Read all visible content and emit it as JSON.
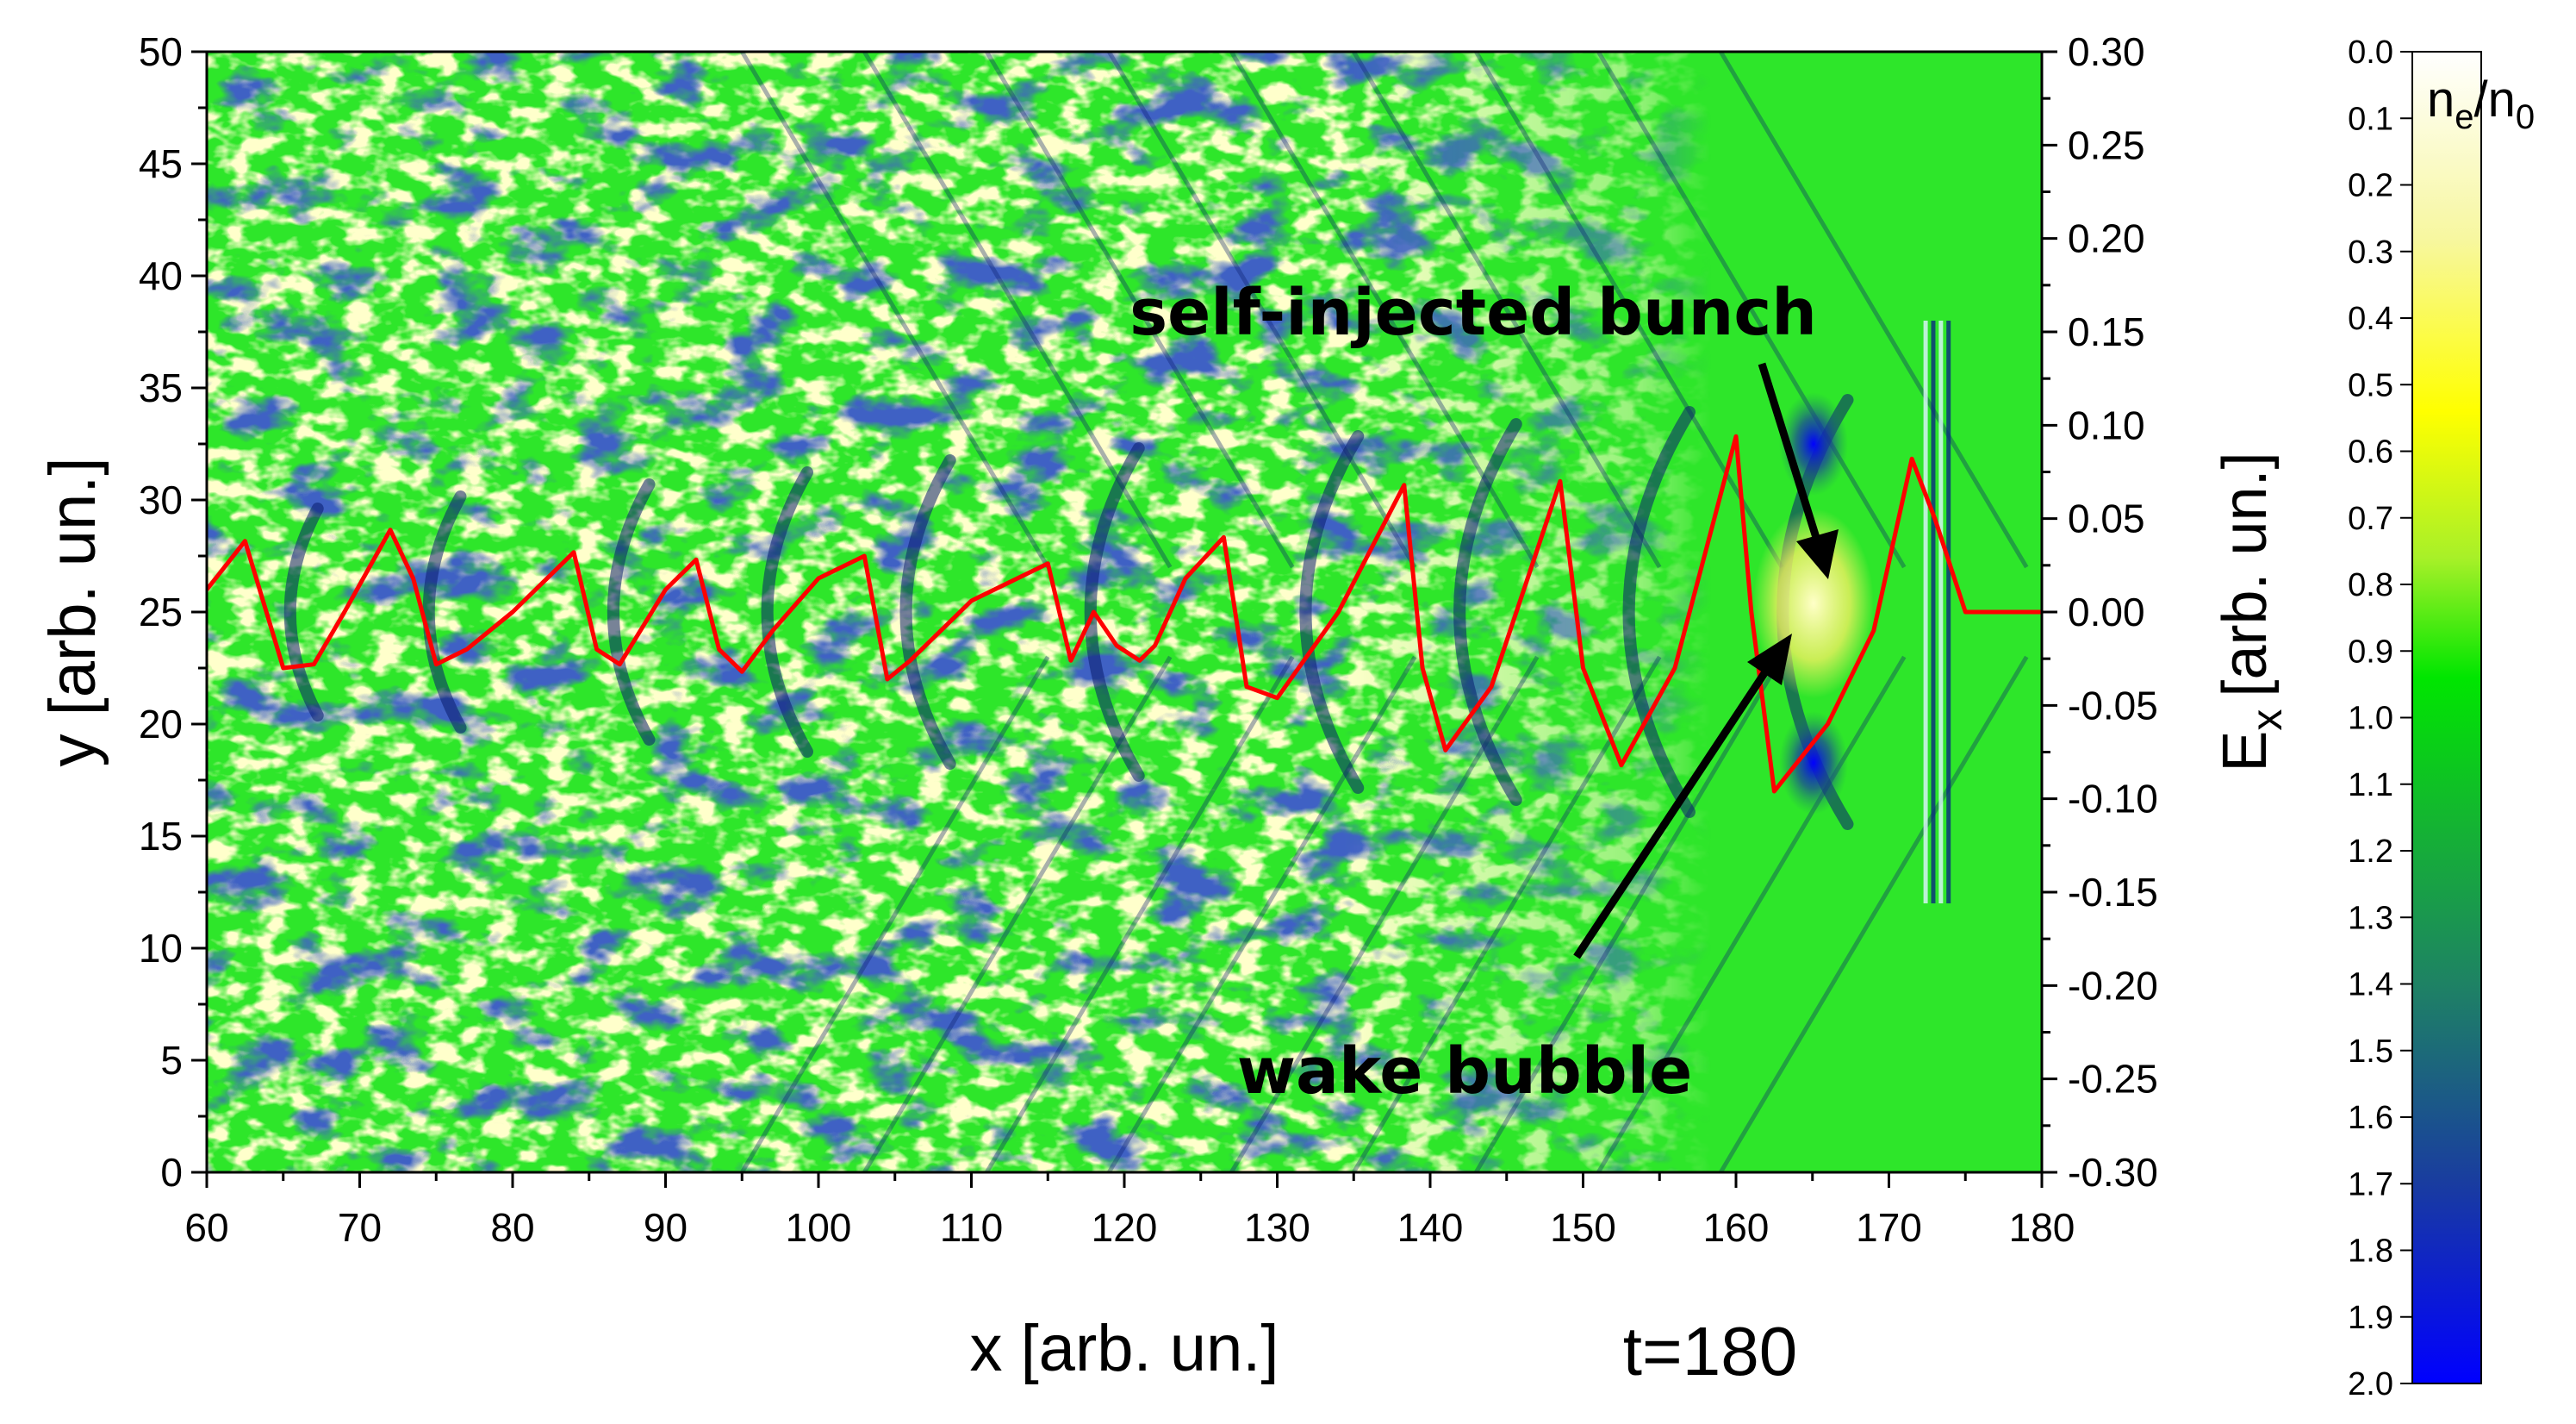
{
  "chart_data": {
    "type": "heatmap",
    "xlabel": "x [arb. un.]",
    "ylabel": "y [arb. un.]",
    "y2label": "E",
    "y2label_sub": "x",
    "y2label_unit": "[arb. un.]",
    "time_label": "t=180",
    "xlim": [
      60,
      180
    ],
    "ylim": [
      0,
      50
    ],
    "y2lim": [
      -0.3,
      0.3
    ],
    "xticks": [
      "60",
      "70",
      "80",
      "90",
      "100",
      "110",
      "120",
      "130",
      "140",
      "150",
      "160",
      "170",
      "180"
    ],
    "yticks": [
      "0",
      "5",
      "10",
      "15",
      "20",
      "25",
      "30",
      "35",
      "40",
      "45",
      "50"
    ],
    "y2ticks": [
      "0.30",
      "0.25",
      "0.20",
      "0.15",
      "0.10",
      "0.05",
      "0.00",
      "-0.05",
      "-0.10",
      "-0.15",
      "-0.20",
      "-0.25",
      "-0.30"
    ],
    "colorbar": {
      "label_main": "n",
      "label_sub1": "e",
      "label_sep": "/n",
      "label_sub2": "0",
      "range": [
        0.0,
        2.0
      ],
      "ticks": [
        "0.0",
        "0.1",
        "0.2",
        "0.3",
        "0.4",
        "0.5",
        "0.6",
        "0.7",
        "0.8",
        "0.9",
        "1.0",
        "1.1",
        "1.2",
        "1.3",
        "1.4",
        "1.5",
        "1.6",
        "1.7",
        "1.8",
        "1.9",
        "2.0"
      ],
      "colors": [
        "#ffffff",
        "#f7f7a0",
        "#ffff00",
        "#a8f028",
        "#00e600",
        "#14b432",
        "#1e8264",
        "#193ca0",
        "#0000ff"
      ]
    },
    "annotations": [
      {
        "text": "self-injected bunch",
        "arrow_to": [
          166,
          25
        ]
      },
      {
        "text": "wake bubble",
        "arrow_to": [
          165,
          24
        ]
      }
    ],
    "series": [
      {
        "axis": "right",
        "color": "#ff0000",
        "x": [
          60,
          62.5,
          65,
          67,
          69,
          72,
          73.5,
          75,
          77,
          80,
          84,
          85.5,
          87,
          90,
          92,
          93.5,
          95,
          97,
          100,
          103,
          104.5,
          106,
          110,
          115,
          116.5,
          118,
          119.5,
          121,
          122,
          124,
          126.5,
          128,
          130,
          134,
          138.3,
          139.5,
          141,
          144,
          148.5,
          150,
          152.5,
          156,
          160,
          161,
          162.5,
          166,
          169,
          171.5,
          173,
          175,
          180
        ],
        "y": [
          0.012,
          0.038,
          -0.03,
          -0.028,
          0.0,
          0.044,
          0.018,
          -0.028,
          -0.02,
          0.0,
          0.032,
          -0.02,
          -0.028,
          0.012,
          0.028,
          -0.02,
          -0.032,
          -0.01,
          0.018,
          0.03,
          -0.036,
          -0.026,
          0.006,
          0.026,
          -0.026,
          0.0,
          -0.018,
          -0.026,
          -0.018,
          0.018,
          0.04,
          -0.04,
          -0.046,
          0.0,
          0.068,
          -0.03,
          -0.074,
          -0.04,
          0.07,
          -0.03,
          -0.082,
          -0.03,
          0.094,
          0.0,
          -0.096,
          -0.06,
          -0.01,
          0.082,
          0.05,
          0.0,
          0.0
        ]
      }
    ]
  }
}
